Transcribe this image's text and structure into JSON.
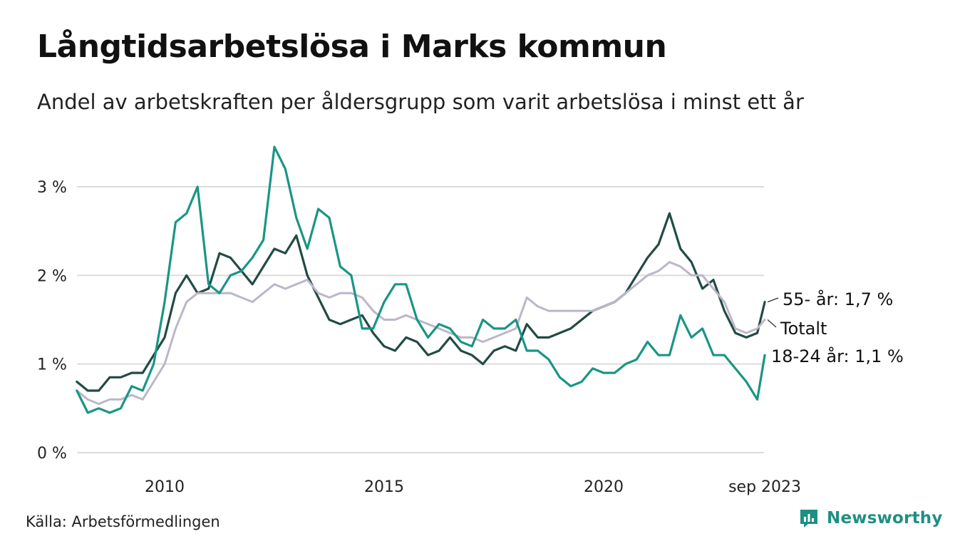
{
  "header": {
    "title": "Långtidsarbetslösa i Marks kommun",
    "subtitle": "Andel av arbetskraften per åldersgrupp som varit arbetslösa i minst ett år"
  },
  "footer": {
    "source": "Källa: Arbetsförmedlingen",
    "brand": "Newsworthy"
  },
  "colors": {
    "youth": "#1a9585",
    "older": "#224b45",
    "total": "#bcb7c7",
    "grid": "#dcdcdc",
    "brand": "#1f8f85"
  },
  "chart_data": {
    "type": "line",
    "title": "Långtidsarbetslösa i Marks kommun",
    "xlabel": "",
    "ylabel": "",
    "xlim": [
      2008.0,
      2023.67
    ],
    "ylim": [
      0,
      3.5
    ],
    "grid": true,
    "y_ticks": [
      {
        "value": 0,
        "label": "0 %"
      },
      {
        "value": 1,
        "label": "1 %"
      },
      {
        "value": 2,
        "label": "2 %"
      },
      {
        "value": 3,
        "label": "3 %"
      }
    ],
    "x_ticks": [
      {
        "value": 2010,
        "label": "2010"
      },
      {
        "value": 2015,
        "label": "2015"
      },
      {
        "value": 2020,
        "label": "2020"
      },
      {
        "value": 2023.67,
        "label": "sep 2023"
      }
    ],
    "series": [
      {
        "key": "older",
        "name": "55- år",
        "end_label": "55- år: 1,7 %",
        "color": "#224b45",
        "x": [
          2008.0,
          2008.25,
          2008.5,
          2008.75,
          2009.0,
          2009.25,
          2009.5,
          2009.75,
          2010.0,
          2010.25,
          2010.5,
          2010.75,
          2011.0,
          2011.25,
          2011.5,
          2011.75,
          2012.0,
          2012.25,
          2012.5,
          2012.75,
          2013.0,
          2013.25,
          2013.5,
          2013.75,
          2014.0,
          2014.25,
          2014.5,
          2014.75,
          2015.0,
          2015.25,
          2015.5,
          2015.75,
          2016.0,
          2016.25,
          2016.5,
          2016.75,
          2017.0,
          2017.25,
          2017.5,
          2017.75,
          2018.0,
          2018.25,
          2018.5,
          2018.75,
          2019.0,
          2019.25,
          2019.5,
          2019.75,
          2020.0,
          2020.25,
          2020.5,
          2020.75,
          2021.0,
          2021.25,
          2021.5,
          2021.75,
          2022.0,
          2022.25,
          2022.5,
          2022.75,
          2023.0,
          2023.25,
          2023.5,
          2023.67
        ],
        "values": [
          0.8,
          0.7,
          0.7,
          0.85,
          0.85,
          0.9,
          0.9,
          1.1,
          1.3,
          1.8,
          2.0,
          1.8,
          1.85,
          2.25,
          2.2,
          2.05,
          1.9,
          2.1,
          2.3,
          2.25,
          2.45,
          2.0,
          1.75,
          1.5,
          1.45,
          1.5,
          1.55,
          1.35,
          1.2,
          1.15,
          1.3,
          1.25,
          1.1,
          1.15,
          1.3,
          1.15,
          1.1,
          1.0,
          1.15,
          1.2,
          1.15,
          1.45,
          1.3,
          1.3,
          1.35,
          1.4,
          1.5,
          1.6,
          1.65,
          1.7,
          1.8,
          2.0,
          2.2,
          2.35,
          2.7,
          2.3,
          2.15,
          1.85,
          1.95,
          1.6,
          1.35,
          1.3,
          1.35,
          1.7
        ]
      },
      {
        "key": "total",
        "name": "Totalt",
        "end_label": "Totalt",
        "color": "#bcb7c7",
        "x": [
          2008.0,
          2008.25,
          2008.5,
          2008.75,
          2009.0,
          2009.25,
          2009.5,
          2009.75,
          2010.0,
          2010.25,
          2010.5,
          2010.75,
          2011.0,
          2011.25,
          2011.5,
          2011.75,
          2012.0,
          2012.25,
          2012.5,
          2012.75,
          2013.0,
          2013.25,
          2013.5,
          2013.75,
          2014.0,
          2014.25,
          2014.5,
          2014.75,
          2015.0,
          2015.25,
          2015.5,
          2015.75,
          2016.0,
          2016.25,
          2016.5,
          2016.75,
          2017.0,
          2017.25,
          2017.5,
          2017.75,
          2018.0,
          2018.25,
          2018.5,
          2018.75,
          2019.0,
          2019.25,
          2019.5,
          2019.75,
          2020.0,
          2020.25,
          2020.5,
          2020.75,
          2021.0,
          2021.25,
          2021.5,
          2021.75,
          2022.0,
          2022.25,
          2022.5,
          2022.75,
          2023.0,
          2023.25,
          2023.5,
          2023.67
        ],
        "values": [
          0.7,
          0.6,
          0.55,
          0.6,
          0.6,
          0.65,
          0.6,
          0.8,
          1.0,
          1.4,
          1.7,
          1.8,
          1.8,
          1.8,
          1.8,
          1.75,
          1.7,
          1.8,
          1.9,
          1.85,
          1.9,
          1.95,
          1.8,
          1.75,
          1.8,
          1.8,
          1.75,
          1.6,
          1.5,
          1.5,
          1.55,
          1.5,
          1.45,
          1.4,
          1.35,
          1.3,
          1.3,
          1.25,
          1.3,
          1.35,
          1.4,
          1.75,
          1.65,
          1.6,
          1.6,
          1.6,
          1.6,
          1.6,
          1.65,
          1.7,
          1.8,
          1.9,
          2.0,
          2.05,
          2.15,
          2.1,
          2.0,
          2.0,
          1.85,
          1.7,
          1.4,
          1.35,
          1.4,
          1.5
        ]
      },
      {
        "key": "youth",
        "name": "18-24 år",
        "end_label": "18-24 år: 1,1 %",
        "color": "#1a9585",
        "x": [
          2008.0,
          2008.25,
          2008.5,
          2008.75,
          2009.0,
          2009.25,
          2009.5,
          2009.75,
          2010.0,
          2010.25,
          2010.5,
          2010.75,
          2011.0,
          2011.25,
          2011.5,
          2011.75,
          2012.0,
          2012.25,
          2012.5,
          2012.75,
          2013.0,
          2013.25,
          2013.5,
          2013.75,
          2014.0,
          2014.25,
          2014.5,
          2014.75,
          2015.0,
          2015.25,
          2015.5,
          2015.75,
          2016.0,
          2016.25,
          2016.5,
          2016.75,
          2017.0,
          2017.25,
          2017.5,
          2017.75,
          2018.0,
          2018.25,
          2018.5,
          2018.75,
          2019.0,
          2019.25,
          2019.5,
          2019.75,
          2020.0,
          2020.25,
          2020.5,
          2020.75,
          2021.0,
          2021.25,
          2021.5,
          2021.75,
          2022.0,
          2022.25,
          2022.5,
          2022.75,
          2023.0,
          2023.25,
          2023.5,
          2023.67
        ],
        "values": [
          0.7,
          0.45,
          0.5,
          0.45,
          0.5,
          0.75,
          0.7,
          1.0,
          1.7,
          2.6,
          2.7,
          3.0,
          1.9,
          1.8,
          2.0,
          2.05,
          2.2,
          2.4,
          3.45,
          3.2,
          2.65,
          2.3,
          2.75,
          2.65,
          2.1,
          2.0,
          1.4,
          1.4,
          1.7,
          1.9,
          1.9,
          1.5,
          1.3,
          1.45,
          1.4,
          1.25,
          1.2,
          1.5,
          1.4,
          1.4,
          1.5,
          1.15,
          1.15,
          1.05,
          0.85,
          0.75,
          0.8,
          0.95,
          0.9,
          0.9,
          1.0,
          1.05,
          1.25,
          1.1,
          1.1,
          1.55,
          1.3,
          1.4,
          1.1,
          1.1,
          0.95,
          0.8,
          0.6,
          1.1
        ]
      }
    ]
  }
}
